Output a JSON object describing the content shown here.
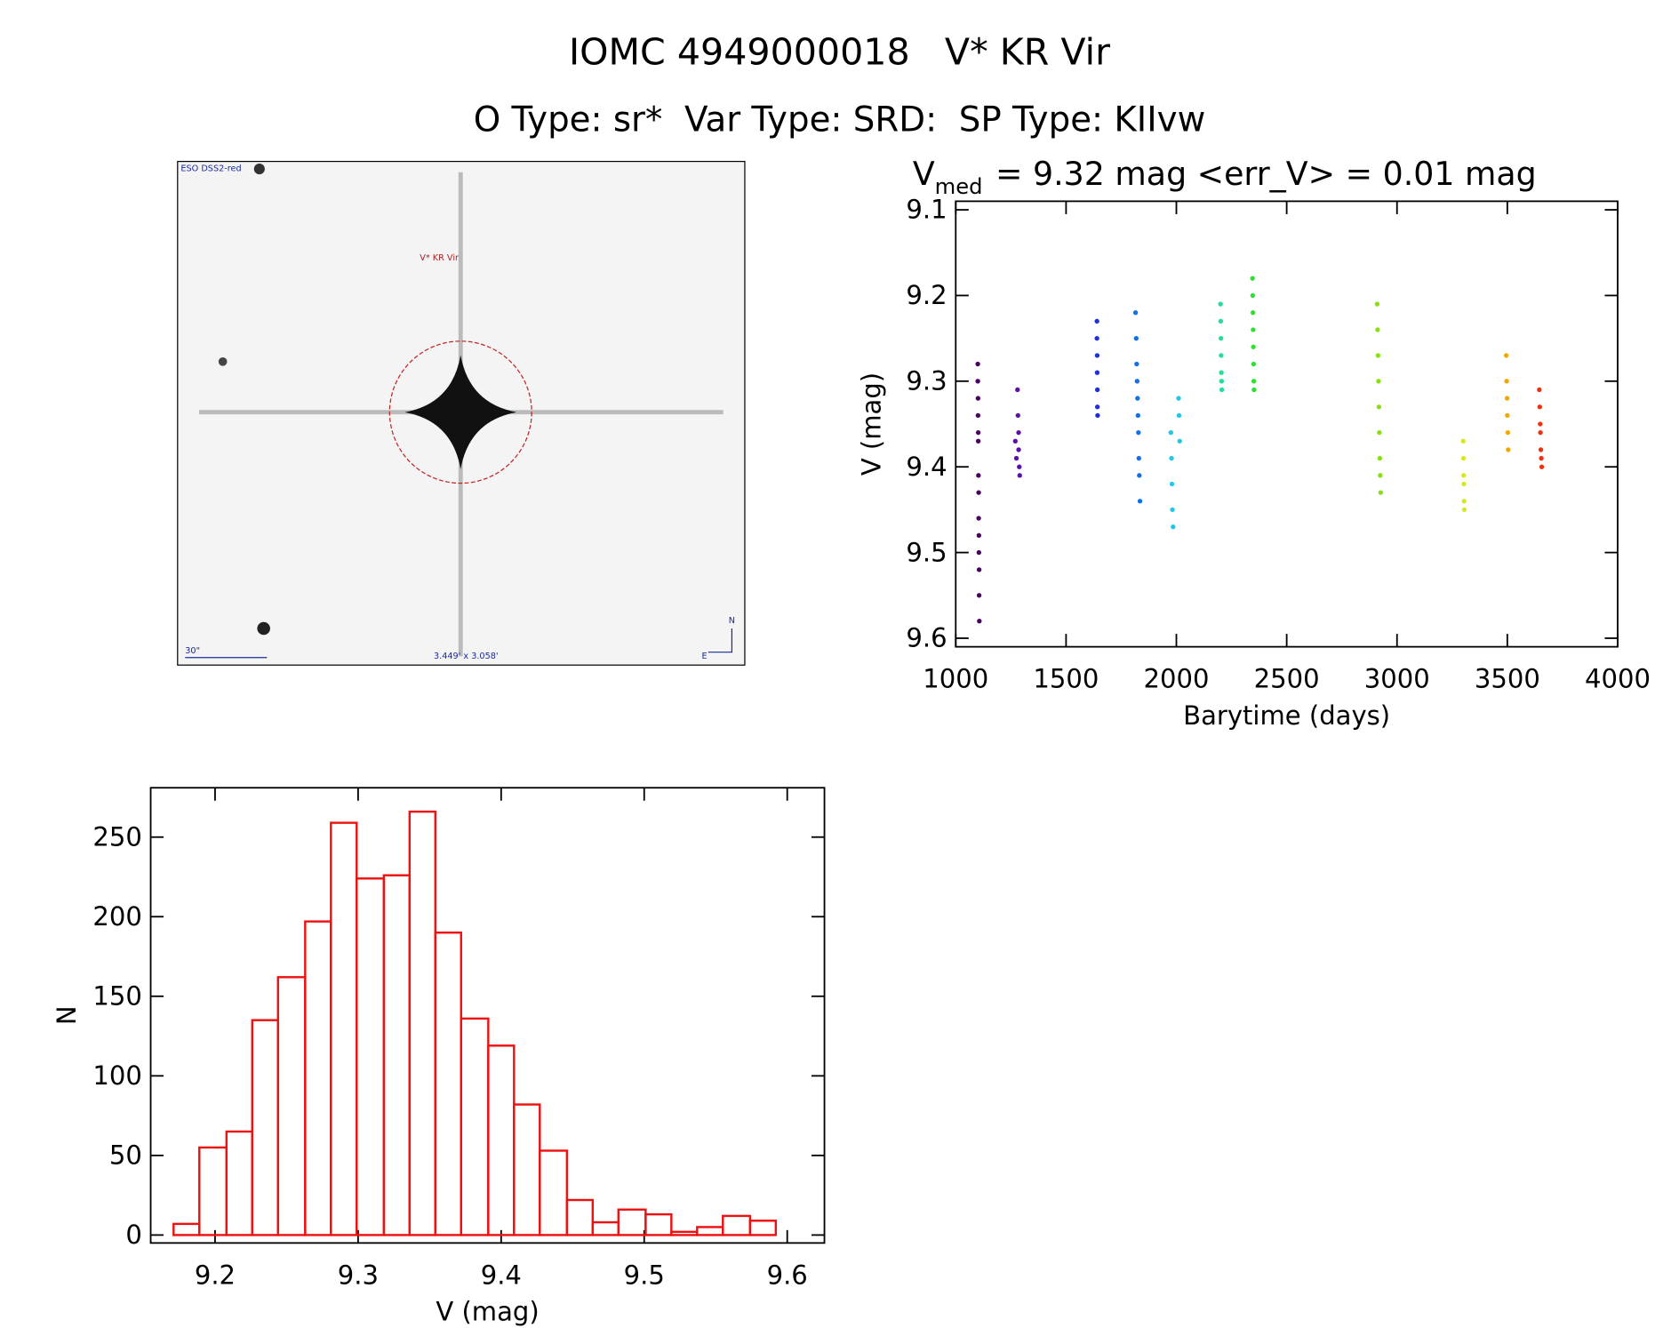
{
  "header": {
    "title": "IOMC 4949000018   V* KR Vir",
    "subtitle": "O Type: sr*  Var Type: SRD:  SP Type: KIIvw"
  },
  "sky_image": {
    "survey": "ESO DSS2-red",
    "target": "V* KR Vir",
    "scale": "30\"",
    "field": "3.449' x 3.058'",
    "north": "N",
    "east": "E"
  },
  "chart_data": [
    {
      "type": "scatter",
      "title_parts": [
        "V",
        "med",
        "= 9.32 mag <err_V> = 0.01 mag"
      ],
      "x_label": "Barytime (days)",
      "y_label": "V (mag)",
      "xlim": [
        1000,
        4000
      ],
      "xticks": [
        1000,
        1500,
        2000,
        2500,
        3000,
        3500,
        4000
      ],
      "ylim": [
        9.09,
        9.61
      ],
      "yticks": [
        9.1,
        9.2,
        9.3,
        9.4,
        9.5,
        9.6
      ],
      "y_inverted": true,
      "series": [
        {
          "color": "#4b0060",
          "x": [
            1100,
            1100,
            1101,
            1101,
            1102,
            1102,
            1103,
            1104,
            1104,
            1105,
            1105,
            1106,
            1106,
            1107
          ],
          "y": [
            9.28,
            9.3,
            9.32,
            9.34,
            9.36,
            9.37,
            9.41,
            9.43,
            9.46,
            9.48,
            9.5,
            9.52,
            9.55,
            9.58
          ]
        },
        {
          "color": "#5a10a8",
          "x": [
            1270,
            1275,
            1280,
            1282,
            1285,
            1285,
            1288,
            1290
          ],
          "y": [
            9.37,
            9.39,
            9.31,
            9.34,
            9.36,
            9.38,
            9.4,
            9.41
          ]
        },
        {
          "color": "#2030d8",
          "x": [
            1640,
            1640,
            1641,
            1641,
            1642,
            1642,
            1643
          ],
          "y": [
            9.23,
            9.25,
            9.27,
            9.29,
            9.31,
            9.33,
            9.34
          ]
        },
        {
          "color": "#1070e8",
          "x": [
            1815,
            1818,
            1820,
            1822,
            1824,
            1826,
            1828,
            1830,
            1832,
            1835
          ],
          "y": [
            9.22,
            9.25,
            9.28,
            9.3,
            9.32,
            9.34,
            9.36,
            9.39,
            9.41,
            9.44
          ]
        },
        {
          "color": "#20c8e8",
          "x": [
            1975,
            1978,
            1980,
            1982,
            1985,
            2010,
            2012,
            2015
          ],
          "y": [
            9.36,
            9.39,
            9.42,
            9.45,
            9.47,
            9.32,
            9.34,
            9.37
          ]
        },
        {
          "color": "#20e098",
          "x": [
            2200,
            2201,
            2202,
            2203,
            2204,
            2205,
            2206
          ],
          "y": [
            9.21,
            9.23,
            9.25,
            9.27,
            9.29,
            9.3,
            9.31
          ]
        },
        {
          "color": "#30e030",
          "x": [
            2345,
            2346,
            2347,
            2348,
            2349,
            2350,
            2351,
            2352
          ],
          "y": [
            9.18,
            9.2,
            9.22,
            9.24,
            9.26,
            9.28,
            9.3,
            9.31
          ]
        },
        {
          "color": "#88e010",
          "x": [
            2910,
            2912,
            2914,
            2916,
            2918,
            2920,
            2922,
            2924,
            2926
          ],
          "y": [
            9.21,
            9.24,
            9.27,
            9.3,
            9.33,
            9.36,
            9.39,
            9.41,
            9.43
          ]
        },
        {
          "color": "#d8e820",
          "x": [
            3300,
            3301,
            3302,
            3303,
            3304,
            3305
          ],
          "y": [
            9.37,
            9.39,
            9.41,
            9.42,
            9.44,
            9.45
          ]
        },
        {
          "color": "#f0a800",
          "x": [
            3495,
            3497,
            3499,
            3500,
            3502,
            3504
          ],
          "y": [
            9.27,
            9.3,
            9.32,
            9.34,
            9.36,
            9.38
          ]
        },
        {
          "color": "#f03010",
          "x": [
            3645,
            3647,
            3649,
            3650,
            3652,
            3654,
            3656
          ],
          "y": [
            9.31,
            9.33,
            9.35,
            9.36,
            9.38,
            9.39,
            9.4
          ]
        }
      ]
    },
    {
      "type": "histogram",
      "x_label": "V (mag)",
      "y_label": "N",
      "color": "#ee1111",
      "bins": [
        9.171,
        9.189,
        9.208,
        9.226,
        9.244,
        9.263,
        9.281,
        9.299,
        9.318,
        9.336,
        9.354,
        9.372,
        9.391,
        9.409,
        9.427,
        9.446,
        9.464,
        9.482,
        9.501,
        9.519,
        9.537,
        9.555,
        9.574,
        9.592
      ],
      "values": [
        7,
        55,
        65,
        135,
        162,
        197,
        259,
        224,
        226,
        266,
        190,
        136,
        119,
        82,
        53,
        22,
        8,
        16,
        13,
        2,
        5,
        12,
        9
      ],
      "xlim": [
        9.155,
        9.626
      ],
      "xticks": [
        9.2,
        9.3,
        9.4,
        9.5,
        9.6
      ],
      "ylim": [
        -5,
        281
      ],
      "yticks": [
        0,
        50,
        100,
        150,
        200,
        250
      ]
    }
  ]
}
